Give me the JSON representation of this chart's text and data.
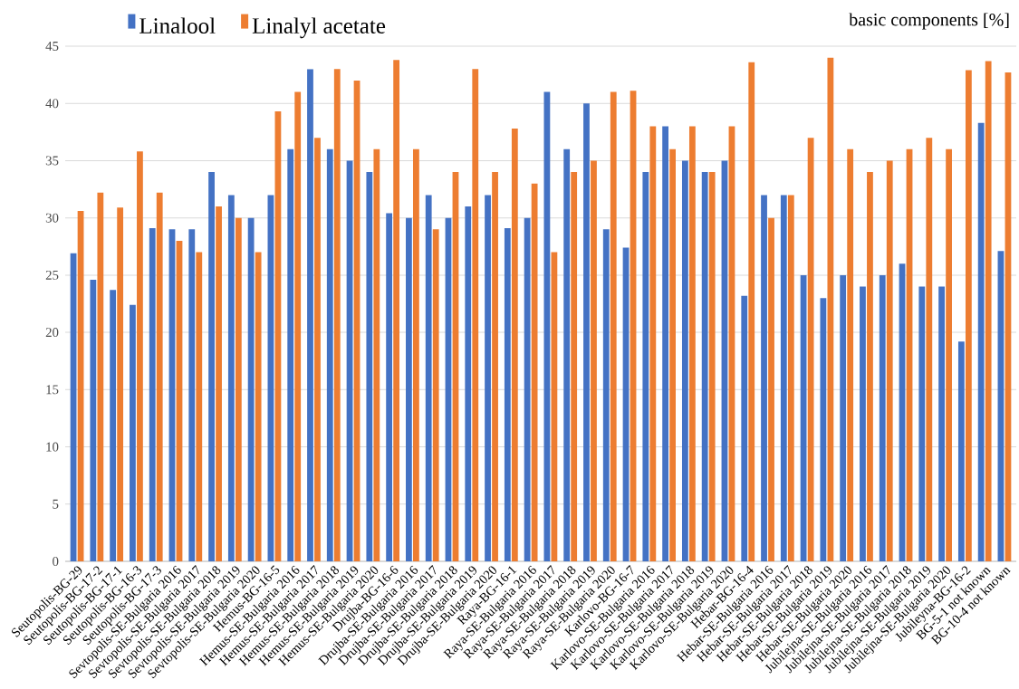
{
  "chart_data": {
    "type": "bar",
    "ylabel": "basic components [%]",
    "categories": [
      "Seutopolis-BG-29",
      "Seutopolis-BG-17-2",
      "Seutopolis-BG-17-1",
      "Seutopolis-BG-16-3",
      "Seutopolis-BG-17-3",
      "Sevtopolis-SE-Bulgaria 2016",
      "Sevtopolis-SE-Bulgaria 2017",
      "Sevtopolis-SE-Bulgaria 2018",
      "Sevtopolis-SE-Bulgaria 2019",
      "Sevtopolis-SE-Bulgaria 2020",
      "Hemus-BG-16-5",
      "Hemus-SE-Bulgaria 2016",
      "Hemus-SE-Bulgaria 2017",
      "Hemus-SE-Bulgaria 2018",
      "Hemus-SE-Bulgaria 2019",
      "Hemus-SE-Bulgaria 2020",
      "Drujba-BG-16-6",
      "Drujba-SE-Bulgaria 2016",
      "Drujba-SE-Bulgaria 2017",
      "Drujba-SE-Bulgaria 2018",
      "Drujba-SE-Bulgaria 2019",
      "Drujba-SE-Bulgaria 2020",
      "Raya-BG-16-1",
      "Raya-SE-Bulgaria 2016",
      "Raya-SE-Bulgaria 2017",
      "Raya-SE-Bulgaria 2018",
      "Raya-SE-Bulgaria 2019",
      "Raya-SE-Bulgaria 2020",
      "Karlovo-BG-16-7",
      "Karlovo-SE-Bulgaria 2016",
      "Karlovo-SE-Bulgaria 2017",
      "Karlovo-SE-Bulgaria 2018",
      "Karlovo-SE-Bulgaria 2019",
      "Karlovo-SE-Bulgaria 2020",
      "Hebar-BG-16-4",
      "Hebar-SE-Bulgaria 2016",
      "Hebar-SE-Bulgaria 2017",
      "Hebar-SE-Bulgaria 2018",
      "Hebar-SE-Bulgaria 2019",
      "Hebar-SE-Bulgaria 2020",
      "Jubilejna-SE-Bulgaria 2016",
      "Jubilejna-SE-Bulgaria 2017",
      "Jubilejna-SE-Bulgaria 2018",
      "Jubilejna-SE-Bulgaria 2019",
      "Jubilejna-SE-Bulgaria 2020",
      "Jubileyna-BG-16-2",
      "BG-5-1 not known",
      "BG-10-4 not known"
    ],
    "series": [
      {
        "name": "Linalool",
        "color": "#4472c4",
        "values": [
          26.9,
          24.6,
          23.7,
          22.4,
          29.1,
          29,
          29,
          34,
          32,
          30,
          32,
          36,
          43,
          36,
          35,
          34,
          30.4,
          30,
          32,
          30,
          31,
          32,
          29.1,
          30,
          41,
          36,
          40,
          29,
          27.4,
          34,
          38,
          35,
          34,
          35,
          23.2,
          32,
          32,
          25,
          23,
          25,
          24,
          25,
          26,
          24,
          24,
          19.2,
          38.3,
          27.1
        ]
      },
      {
        "name": "Linalyl acetate",
        "color": "#ed7d31",
        "values": [
          30.6,
          32.2,
          30.9,
          35.8,
          32.2,
          28,
          27,
          31,
          30,
          27,
          39.3,
          41,
          37,
          43,
          42,
          36,
          43.8,
          36,
          29,
          34,
          43,
          34,
          37.8,
          33,
          27,
          34,
          35,
          41,
          41.1,
          38,
          36,
          38,
          34,
          38,
          43.6,
          30,
          32,
          37,
          44,
          36,
          34,
          35,
          36,
          37,
          36,
          42.9,
          43.7,
          42.7
        ]
      }
    ],
    "ylim": [
      0,
      45
    ],
    "yticks": [
      0,
      5,
      10,
      15,
      20,
      25,
      30,
      35,
      40,
      45
    ],
    "grid": "y",
    "legend": "top left"
  }
}
